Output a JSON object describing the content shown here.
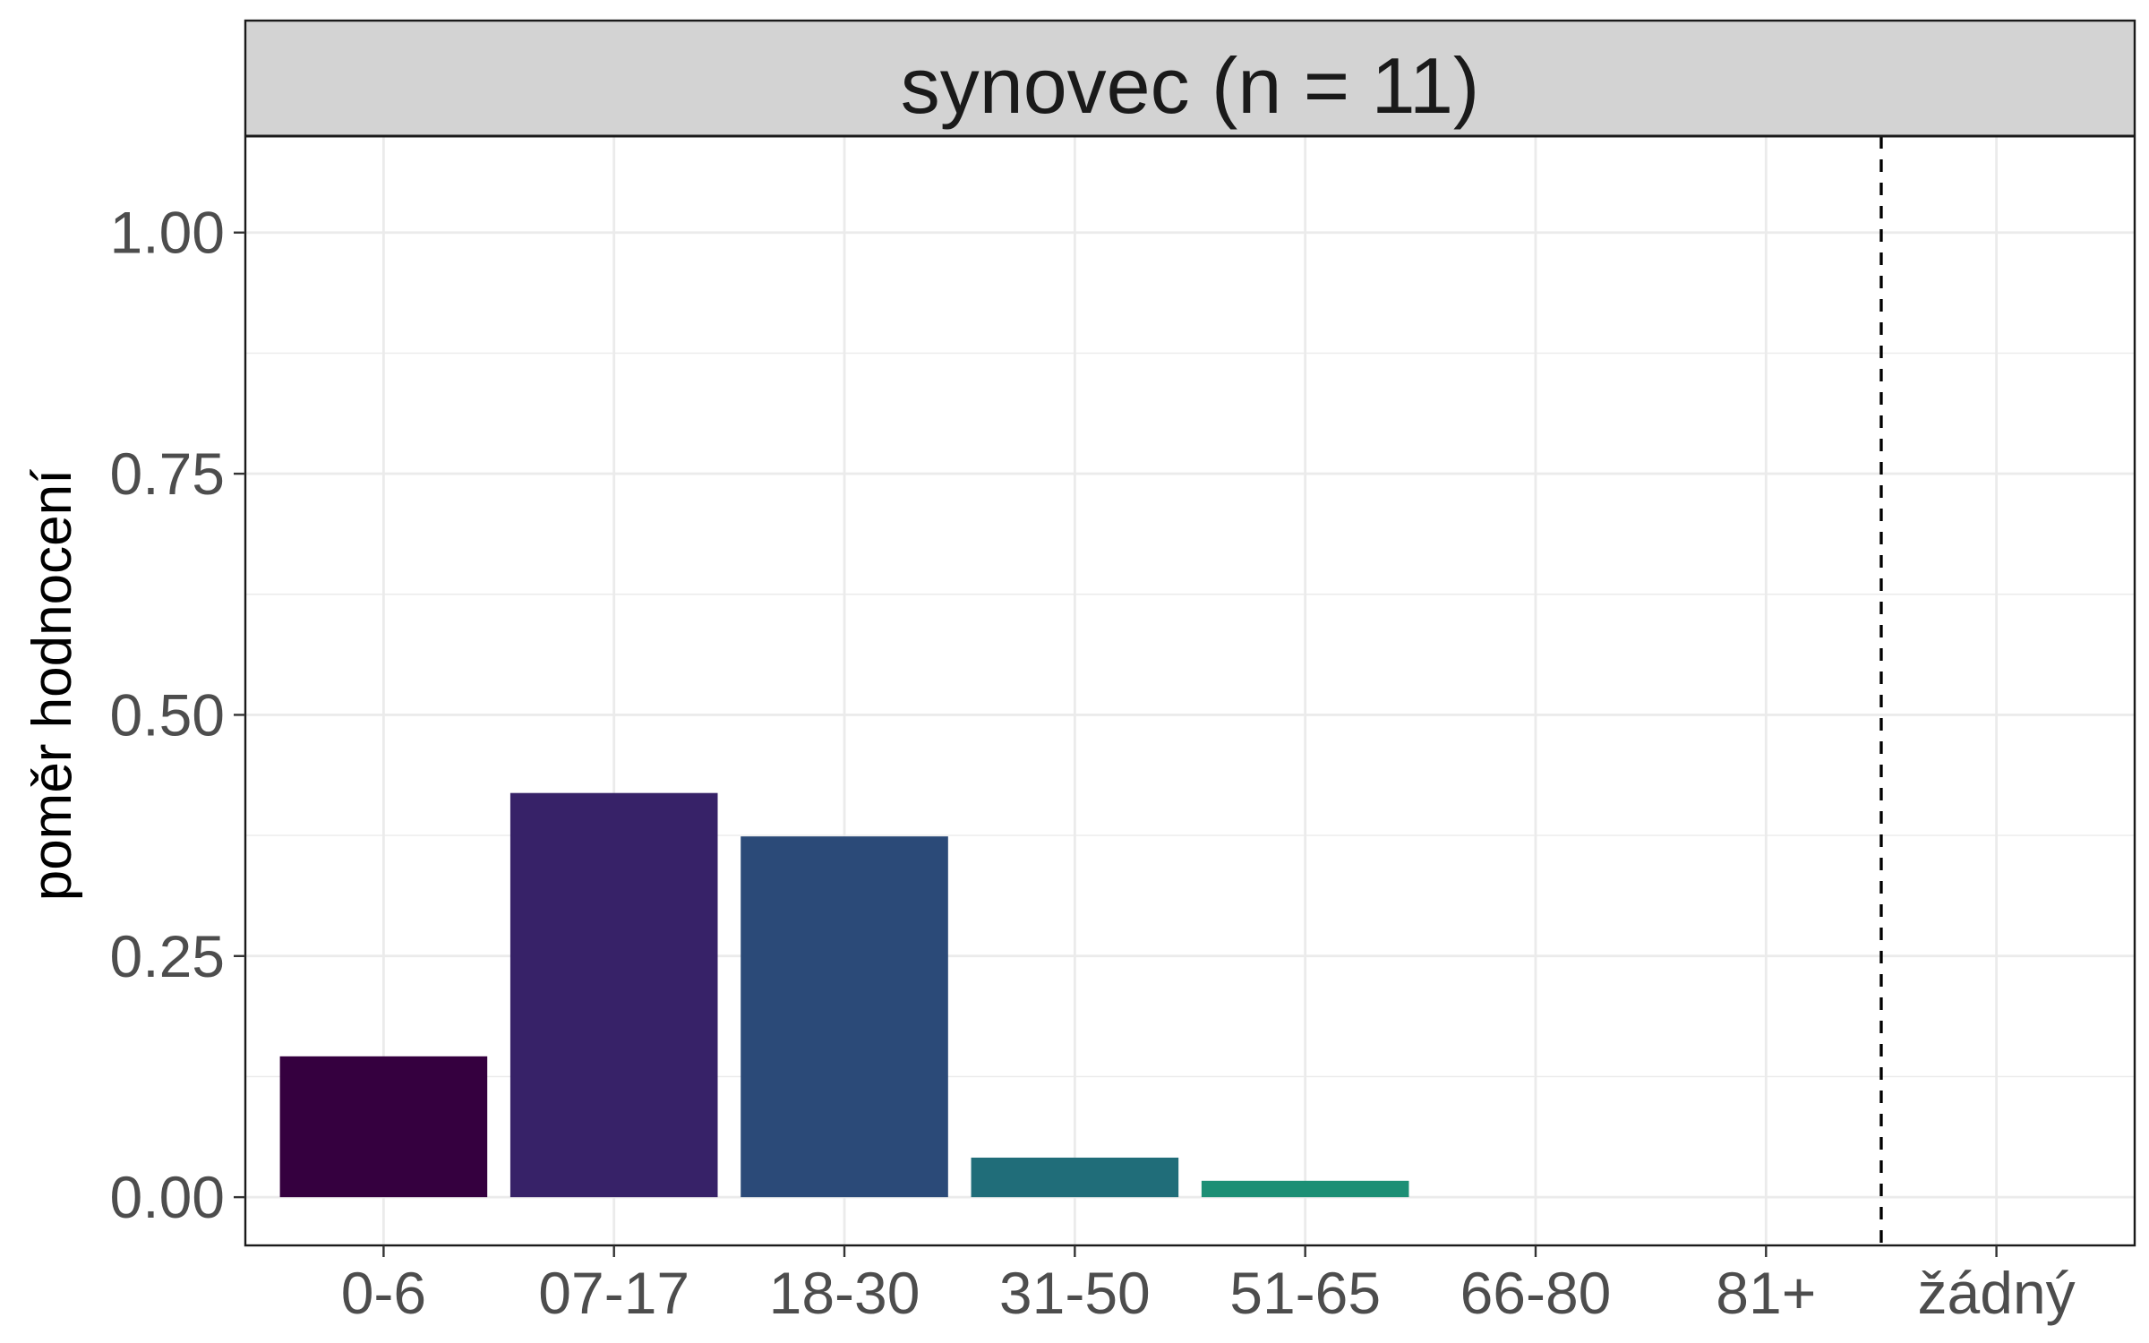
{
  "chart_data": {
    "type": "bar",
    "title": "synovec (n = 11)",
    "xlabel": "",
    "ylabel": "poměr hodnocení",
    "categories": [
      "0-6",
      "07-17",
      "18-30",
      "31-50",
      "51-65",
      "66-80",
      "81+",
      "žádný"
    ],
    "values": [
      0.146,
      0.419,
      0.374,
      0.041,
      0.017,
      0,
      0,
      0
    ],
    "bar_colors": [
      "#35003f",
      "#372268",
      "#2b4a78",
      "#206d79",
      "#1c8f75",
      "#2d9b6f",
      "#58b660",
      "#9fd04a"
    ],
    "ylim": [
      -0.05,
      1.1
    ],
    "yticks": [
      0,
      0.25,
      0.5,
      0.75,
      1
    ],
    "ytick_labels": [
      "0.00",
      "0.25",
      "0.50",
      "0.75",
      "1.00"
    ],
    "reference_line": {
      "position": "between 81+ and žádný",
      "style": "dashed",
      "color": "#000000"
    },
    "grid": true,
    "legend": "none"
  }
}
